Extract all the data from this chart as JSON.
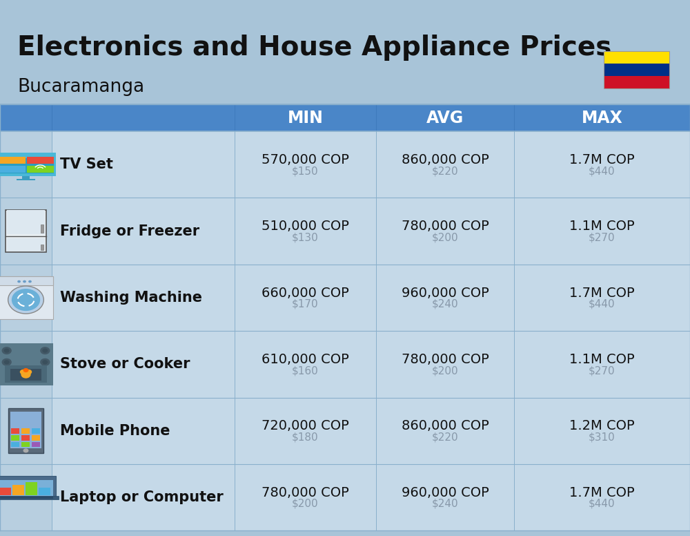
{
  "title": "Electronics and House Appliance Prices",
  "subtitle": "Bucaramanga",
  "bg_color": "#a8c4d8",
  "header_color": "#4a86c8",
  "header_text_color": "#ffffff",
  "row_bg_light": "#c5d9e8",
  "row_bg_icon": "#b8cfe0",
  "separator_color": "#8ab0cc",
  "col_headers": [
    "MIN",
    "AVG",
    "MAX"
  ],
  "items": [
    {
      "name": "TV Set",
      "min_cop": "570,000 COP",
      "min_usd": "$150",
      "avg_cop": "860,000 COP",
      "avg_usd": "$220",
      "max_cop": "1.7M COP",
      "max_usd": "$440"
    },
    {
      "name": "Fridge or Freezer",
      "min_cop": "510,000 COP",
      "min_usd": "$130",
      "avg_cop": "780,000 COP",
      "avg_usd": "$200",
      "max_cop": "1.1M COP",
      "max_usd": "$270"
    },
    {
      "name": "Washing Machine",
      "min_cop": "660,000 COP",
      "min_usd": "$170",
      "avg_cop": "960,000 COP",
      "avg_usd": "$240",
      "max_cop": "1.7M COP",
      "max_usd": "$440"
    },
    {
      "name": "Stove or Cooker",
      "min_cop": "610,000 COP",
      "min_usd": "$160",
      "avg_cop": "780,000 COP",
      "avg_usd": "$200",
      "max_cop": "1.1M COP",
      "max_usd": "$270"
    },
    {
      "name": "Mobile Phone",
      "min_cop": "720,000 COP",
      "min_usd": "$180",
      "avg_cop": "860,000 COP",
      "avg_usd": "$220",
      "max_cop": "1.2M COP",
      "max_usd": "$310"
    },
    {
      "name": "Laptop or Computer",
      "min_cop": "780,000 COP",
      "min_usd": "$200",
      "avg_cop": "960,000 COP",
      "avg_usd": "$240",
      "max_cop": "1.7M COP",
      "max_usd": "$440"
    }
  ],
  "flag_colors": [
    "#ffe000",
    "#003087",
    "#ce1126"
  ],
  "title_fontsize": 28,
  "subtitle_fontsize": 19,
  "header_fontsize": 17,
  "item_name_fontsize": 15,
  "value_cop_fontsize": 14,
  "value_usd_fontsize": 11
}
